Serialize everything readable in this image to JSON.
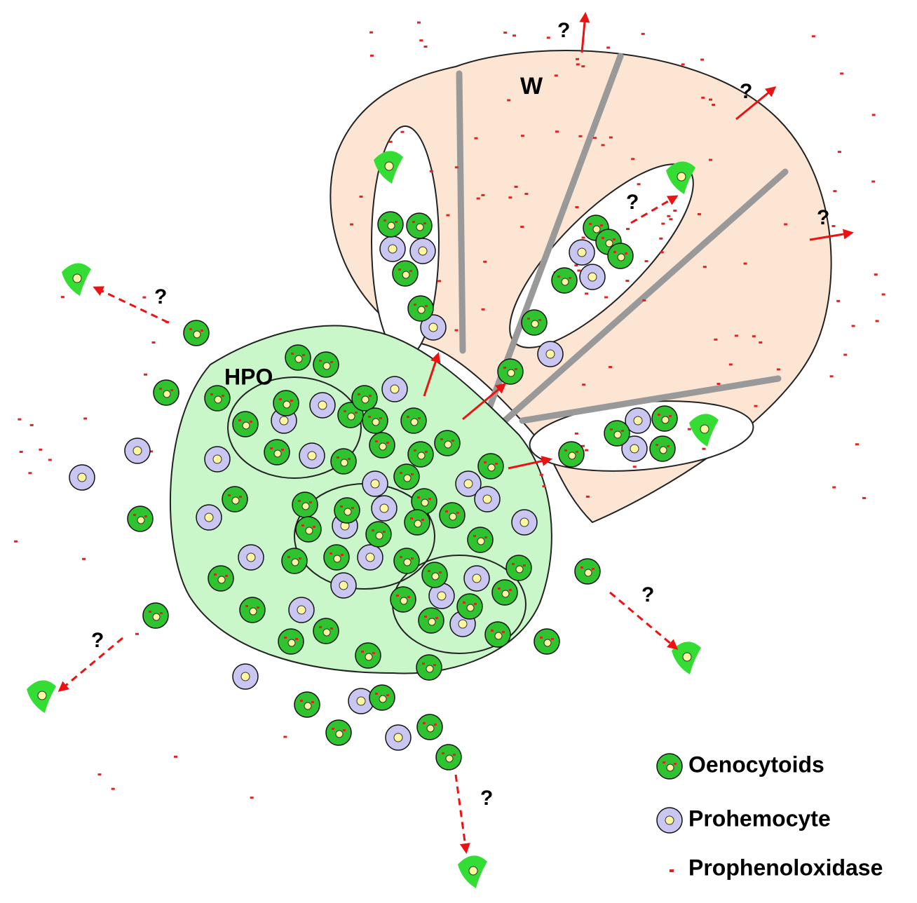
{
  "labels": {
    "wing": "W",
    "organ": "HPO"
  },
  "question_marks": [
    "?",
    "?",
    "?",
    "?",
    "?",
    "?",
    "?",
    "?"
  ],
  "legend": [
    {
      "label": "Oenocytoids"
    },
    {
      "label": "Prohemocyte"
    },
    {
      "label": "Prophenoloxidase"
    }
  ]
}
